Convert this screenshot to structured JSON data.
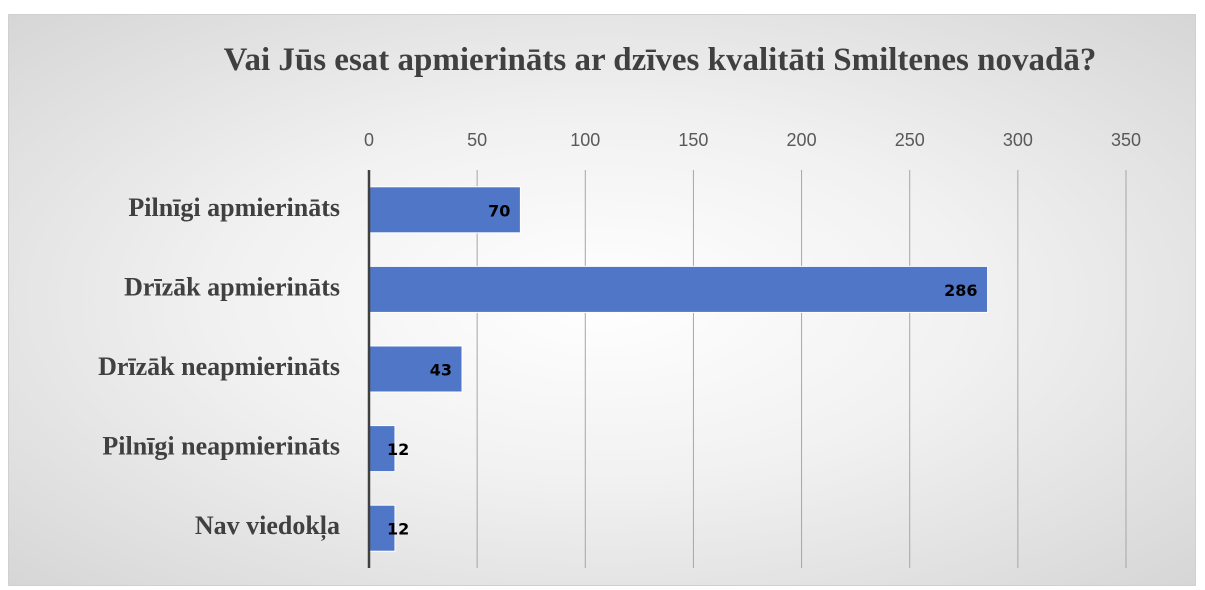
{
  "chart_data": {
    "type": "bar",
    "orientation": "horizontal",
    "title": "Vai Jūs esat apmierināts ar dzīves kvalitāti Smiltenes novadā?",
    "categories": [
      "Pilnīgi apmierināts",
      "Drīzāk apmierināts",
      "Drīzāk neapmierināts",
      "Pilnīgi neapmierināts",
      "Nav viedokļa"
    ],
    "values": [
      70,
      286,
      43,
      12,
      12
    ],
    "color": "#4f76c7",
    "xlim": [
      0,
      350
    ],
    "xticks": [
      0,
      50,
      100,
      150,
      200,
      250,
      300,
      350
    ],
    "grid": true
  }
}
